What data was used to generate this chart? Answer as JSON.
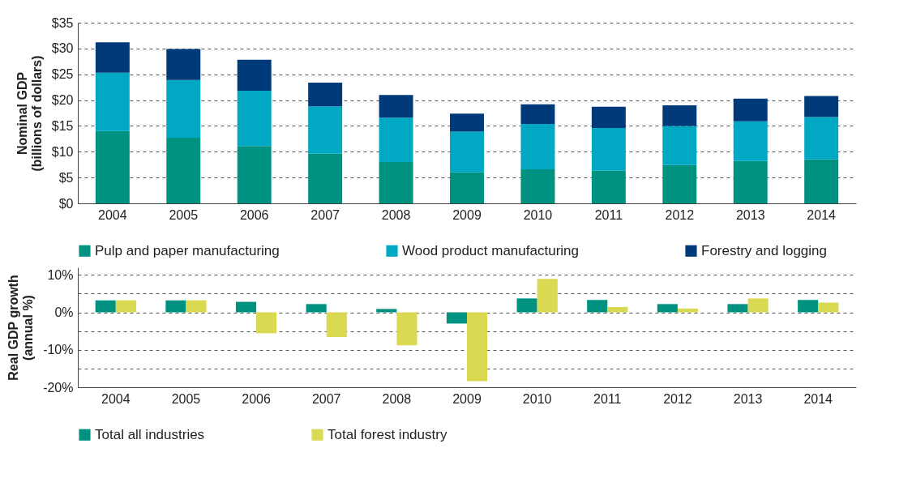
{
  "chart_data": [
    {
      "type": "bar",
      "stacked": true,
      "ylabel": "Nominal GDP (billions of dollars)",
      "categories": [
        "2004",
        "2005",
        "2006",
        "2007",
        "2008",
        "2009",
        "2010",
        "2011",
        "2012",
        "2013",
        "2014"
      ],
      "series": [
        {
          "name": "Pulp and paper manufacturing",
          "color": "#009280",
          "values": [
            14.0,
            12.7,
            11.1,
            9.6,
            8.0,
            6.0,
            6.6,
            6.3,
            7.4,
            8.2,
            8.5
          ]
        },
        {
          "name": "Wood product manufacturing",
          "color": "#00a8c4",
          "values": [
            11.3,
            11.2,
            10.7,
            9.2,
            8.6,
            7.9,
            8.8,
            8.3,
            7.6,
            7.7,
            8.2
          ]
        },
        {
          "name": "Forestry and logging",
          "color": "#003a78",
          "values": [
            5.9,
            6.0,
            6.0,
            4.6,
            4.4,
            3.5,
            3.8,
            4.1,
            4.0,
            4.4,
            4.1
          ]
        }
      ],
      "ylim": [
        0,
        35
      ],
      "yticks": [
        {
          "value": 0,
          "label": "$0"
        },
        {
          "value": 5,
          "label": "$5"
        },
        {
          "value": 10,
          "label": "$10"
        },
        {
          "value": 15,
          "label": "$15"
        },
        {
          "value": 20,
          "label": "$20"
        },
        {
          "value": 25,
          "label": "$25"
        },
        {
          "value": 30,
          "label": "$30"
        },
        {
          "value": 35,
          "label": "$35"
        }
      ],
      "grid": "y",
      "legend": "bottom"
    },
    {
      "type": "bar",
      "ylabel": "Real GDP growth (annual %)",
      "categories": [
        "2004",
        "2005",
        "2006",
        "2007",
        "2008",
        "2009",
        "2010",
        "2011",
        "2012",
        "2013",
        "2014"
      ],
      "series": [
        {
          "name": "Total all industries",
          "color": "#009280",
          "values": [
            3.2,
            3.2,
            2.8,
            2.2,
            0.9,
            -3.0,
            3.7,
            3.3,
            2.2,
            2.2,
            3.3
          ]
        },
        {
          "name": "Total forest industry",
          "color": "#d9d952",
          "values": [
            3.2,
            3.2,
            -5.6,
            -6.6,
            -8.8,
            -18.4,
            8.9,
            1.4,
            1.0,
            3.7,
            2.6
          ]
        }
      ],
      "ylim": [
        -20,
        12
      ],
      "yticks": [
        {
          "value": -20,
          "label": "-20%"
        },
        {
          "value": -15,
          "label": null
        },
        {
          "value": -10,
          "label": "-10%"
        },
        {
          "value": -5,
          "label": null
        },
        {
          "value": 0,
          "label": "0%"
        },
        {
          "value": 5,
          "label": null
        },
        {
          "value": 10,
          "label": "10%"
        }
      ],
      "grid": "y",
      "legend": "bottom"
    }
  ]
}
